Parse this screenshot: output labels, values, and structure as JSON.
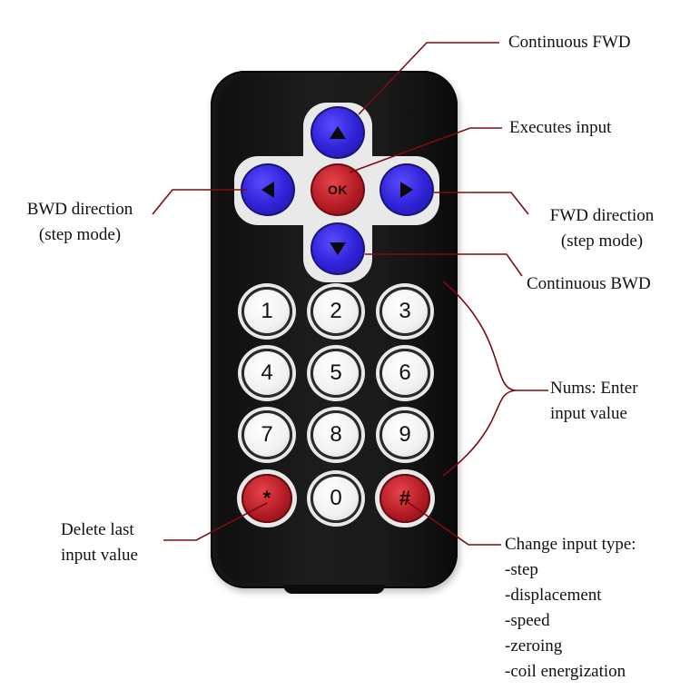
{
  "remote": {
    "dpad": {
      "ok_label": "OK"
    },
    "keypad": {
      "keys": [
        "1",
        "2",
        "3",
        "4",
        "5",
        "6",
        "7",
        "8",
        "9",
        "*",
        "0",
        "#"
      ]
    }
  },
  "annotations": {
    "continuous_fwd": "Continuous FWD",
    "executes_input": "Executes input",
    "bwd_direction": [
      "BWD direction",
      "(step mode)"
    ],
    "fwd_direction": [
      "FWD direction",
      "(step mode)"
    ],
    "continuous_bwd": "Continuous BWD",
    "nums": [
      "Nums: Enter",
      "input value"
    ],
    "delete_last": [
      "Delete last",
      "input value"
    ],
    "change_input_type": [
      "Change input type:",
      "-step",
      "-displacement",
      "-speed",
      "-zeroing",
      "-coil energization"
    ]
  },
  "colors": {
    "leader_line": "#7a0d12",
    "arrow_button": "#2e22d6",
    "ok_button": "#b01a22",
    "remote_body": "#141414"
  }
}
